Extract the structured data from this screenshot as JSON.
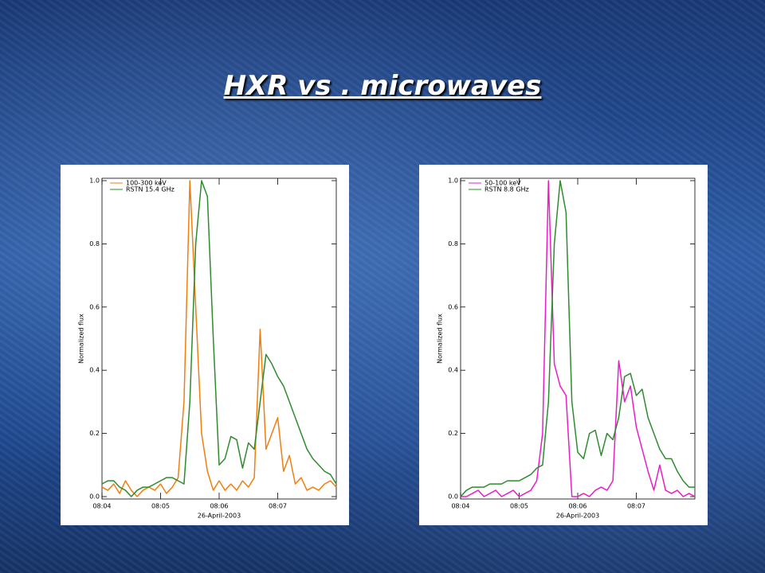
{
  "slide_title": "HXR vs . microwaves",
  "chart_data": [
    {
      "type": "line",
      "x_label": "26-April-2003",
      "y_label": "Normalized flux",
      "xlim": [
        "08:04:00",
        "08:08:00"
      ],
      "xticks": [
        "08:04",
        "08:05",
        "08:06",
        "08:07"
      ],
      "ylim": [
        0,
        1
      ],
      "yticks": [
        {
          "value": 0,
          "label": "0.0"
        },
        0.2,
        0.4,
        0.6,
        0.8,
        {
          "value": 1,
          "label": "1.0"
        }
      ],
      "legend": "upper left",
      "x": [
        "08:04:00",
        "08:04:06",
        "08:04:12",
        "08:04:18",
        "08:04:24",
        "08:04:30",
        "08:04:36",
        "08:04:42",
        "08:04:48",
        "08:04:54",
        "08:05:00",
        "08:05:06",
        "08:05:12",
        "08:05:18",
        "08:05:24",
        "08:05:30",
        "08:05:36",
        "08:05:42",
        "08:05:48",
        "08:05:54",
        "08:06:00",
        "08:06:06",
        "08:06:12",
        "08:06:18",
        "08:06:24",
        "08:06:30",
        "08:06:36",
        "08:06:42",
        "08:06:48",
        "08:06:54",
        "08:07:00",
        "08:07:06",
        "08:07:12",
        "08:07:18",
        "08:07:24",
        "08:07:30",
        "08:07:36",
        "08:07:42",
        "08:07:48",
        "08:07:54",
        "08:08:00"
      ],
      "series": [
        {
          "name": "100-300 keV",
          "color": "#f07f10",
          "values": [
            0.03,
            0.02,
            0.04,
            0.01,
            0.05,
            0.02,
            0.0,
            0.02,
            0.03,
            0.02,
            0.04,
            0.01,
            0.03,
            0.06,
            0.3,
            1.0,
            0.6,
            0.2,
            0.08,
            0.02,
            0.05,
            0.02,
            0.04,
            0.02,
            0.05,
            0.03,
            0.06,
            0.53,
            0.15,
            0.2,
            0.25,
            0.08,
            0.13,
            0.04,
            0.06,
            0.02,
            0.03,
            0.02,
            0.04,
            0.05,
            0.03
          ]
        },
        {
          "name": "RSTN 15.4 GHz",
          "color": "#2e8b2e",
          "values": [
            0.04,
            0.05,
            0.05,
            0.03,
            0.02,
            0.0,
            0.02,
            0.03,
            0.03,
            0.04,
            0.05,
            0.06,
            0.06,
            0.05,
            0.04,
            0.3,
            0.8,
            1.0,
            0.95,
            0.5,
            0.1,
            0.12,
            0.19,
            0.18,
            0.09,
            0.17,
            0.15,
            0.3,
            0.45,
            0.42,
            0.38,
            0.35,
            0.3,
            0.25,
            0.2,
            0.15,
            0.12,
            0.1,
            0.08,
            0.07,
            0.04
          ]
        }
      ]
    },
    {
      "type": "line",
      "x_label": "26-April-2003",
      "y_label": "Normalized flux",
      "xlim": [
        "08:04:00",
        "08:08:00"
      ],
      "xticks": [
        "08:04",
        "08:05",
        "08:06",
        "08:07"
      ],
      "ylim": [
        0,
        1
      ],
      "yticks": [
        {
          "value": 0,
          "label": "0.0"
        },
        0.2,
        0.4,
        0.6,
        0.8,
        {
          "value": 1,
          "label": "1.0"
        }
      ],
      "legend": "upper left",
      "x": [
        "08:04:00",
        "08:04:06",
        "08:04:12",
        "08:04:18",
        "08:04:24",
        "08:04:30",
        "08:04:36",
        "08:04:42",
        "08:04:48",
        "08:04:54",
        "08:05:00",
        "08:05:06",
        "08:05:12",
        "08:05:18",
        "08:05:24",
        "08:05:30",
        "08:05:36",
        "08:05:42",
        "08:05:48",
        "08:05:54",
        "08:06:00",
        "08:06:06",
        "08:06:12",
        "08:06:18",
        "08:06:24",
        "08:06:30",
        "08:06:36",
        "08:06:42",
        "08:06:48",
        "08:06:54",
        "08:07:00",
        "08:07:06",
        "08:07:12",
        "08:07:18",
        "08:07:24",
        "08:07:30",
        "08:07:36",
        "08:07:42",
        "08:07:48",
        "08:07:54",
        "08:08:00"
      ],
      "series": [
        {
          "name": "50-100 keV",
          "color": "#e81ec8",
          "values": [
            0.0,
            0.0,
            0.01,
            0.02,
            0.0,
            0.01,
            0.02,
            0.0,
            0.01,
            0.02,
            0.0,
            0.01,
            0.02,
            0.05,
            0.2,
            1.0,
            0.42,
            0.35,
            0.32,
            0.0,
            0.0,
            0.01,
            0.0,
            0.02,
            0.03,
            0.02,
            0.05,
            0.43,
            0.3,
            0.35,
            0.22,
            0.15,
            0.08,
            0.02,
            0.1,
            0.02,
            0.01,
            0.02,
            0.0,
            0.01,
            0.0
          ]
        },
        {
          "name": "RSTN 8.8 GHz",
          "color": "#2e8b2e",
          "values": [
            0.0,
            0.02,
            0.03,
            0.03,
            0.03,
            0.04,
            0.04,
            0.04,
            0.05,
            0.05,
            0.05,
            0.06,
            0.07,
            0.09,
            0.1,
            0.3,
            0.8,
            1.0,
            0.9,
            0.3,
            0.14,
            0.12,
            0.2,
            0.21,
            0.13,
            0.2,
            0.18,
            0.25,
            0.38,
            0.39,
            0.32,
            0.34,
            0.25,
            0.2,
            0.15,
            0.12,
            0.12,
            0.08,
            0.05,
            0.03,
            0.03
          ]
        }
      ]
    }
  ]
}
